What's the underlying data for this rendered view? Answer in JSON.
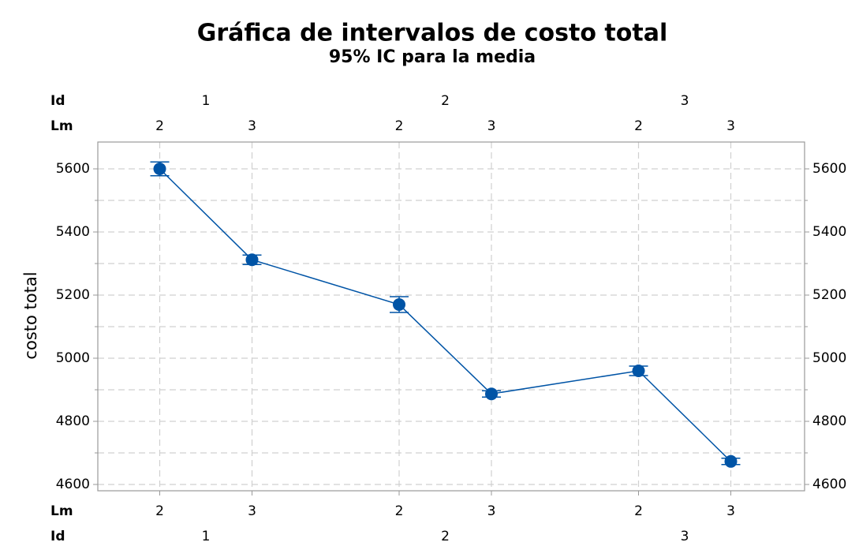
{
  "chart_data": {
    "type": "interval",
    "title": "Gráfica de intervalos de costo total",
    "subtitle": "95% IC para la media",
    "y_label": "costo total",
    "outer_name": "Id",
    "inner_name": "Lm",
    "outer_categories": [
      "1",
      "2",
      "3"
    ],
    "inner_categories": [
      "2",
      "3"
    ],
    "color": "#0054a6",
    "values": [
      5600,
      5312,
      5170,
      4887,
      4960,
      4673
    ],
    "errors": [
      22,
      15,
      25,
      10,
      15,
      10
    ],
    "ylim": [
      4580,
      5685
    ],
    "yticks": [
      4600,
      4800,
      5000,
      5200,
      5400,
      5600
    ],
    "minor_yticks": [
      4700,
      4900,
      5100,
      5300,
      5500
    ],
    "grid": true
  }
}
